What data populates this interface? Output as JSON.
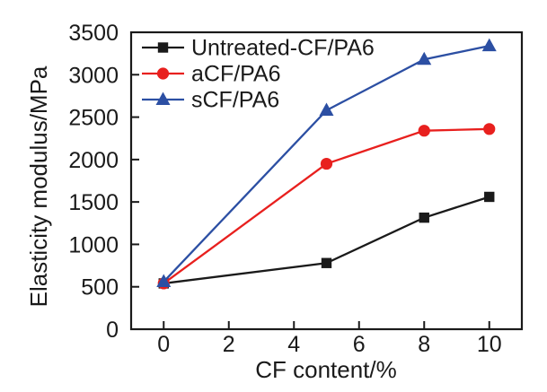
{
  "chart_data": {
    "type": "line",
    "title": "",
    "xlabel": "CF content/%",
    "ylabel": "Elasticity modulus/MPa",
    "x": [
      0,
      5,
      8,
      10
    ],
    "series": [
      {
        "name": "Untreated-CF/PA6",
        "marker": "square",
        "color": "#1a1a1a",
        "values": [
          540,
          780,
          1315,
          1560
        ]
      },
      {
        "name": "aCF/PA6",
        "marker": "circle",
        "color": "#e8201e",
        "values": [
          540,
          1950,
          2340,
          2360
        ]
      },
      {
        "name": "sCF/PA6",
        "marker": "triangle",
        "color": "#2c4fa3",
        "values": [
          560,
          2580,
          3180,
          3340
        ]
      }
    ],
    "xlim": [
      -1,
      11
    ],
    "ylim": [
      0,
      3500
    ],
    "xticks": [
      0,
      2,
      4,
      6,
      8,
      10
    ],
    "yticks": [
      0,
      500,
      1000,
      1500,
      2000,
      2500,
      3000,
      3500
    ],
    "legend_position": "top-left",
    "grid": false,
    "axis_color": "#1a1a1a",
    "background": "#ffffff"
  }
}
